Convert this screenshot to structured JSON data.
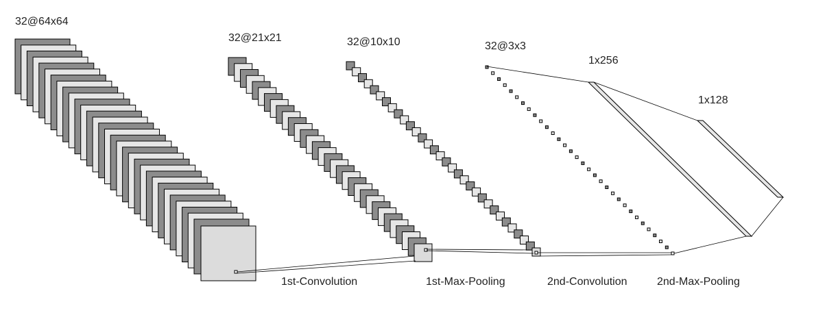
{
  "diagram": {
    "layers": [
      {
        "id": "input",
        "label": "32@64x64",
        "maps": 32
      },
      {
        "id": "conv1",
        "label": "32@21x21",
        "maps": 32
      },
      {
        "id": "pool1",
        "label": "32@10x10",
        "maps": 32
      },
      {
        "id": "conv2",
        "label": "32@3x3",
        "maps": 32
      },
      {
        "id": "fc1",
        "label": "1x256"
      },
      {
        "id": "fc2",
        "label": "1x128"
      }
    ],
    "operations": [
      {
        "id": "op1",
        "label": "1st-Convolution"
      },
      {
        "id": "op2",
        "label": "1st-Max-Pooling"
      },
      {
        "id": "op3",
        "label": "2nd-Convolution"
      },
      {
        "id": "op4",
        "label": "2nd-Max-Pooling"
      }
    ],
    "colors": {
      "dark": "#8c8c8c",
      "light": "#e6e6e6",
      "stroke": "#000000",
      "front": "#dcdcdc"
    }
  }
}
